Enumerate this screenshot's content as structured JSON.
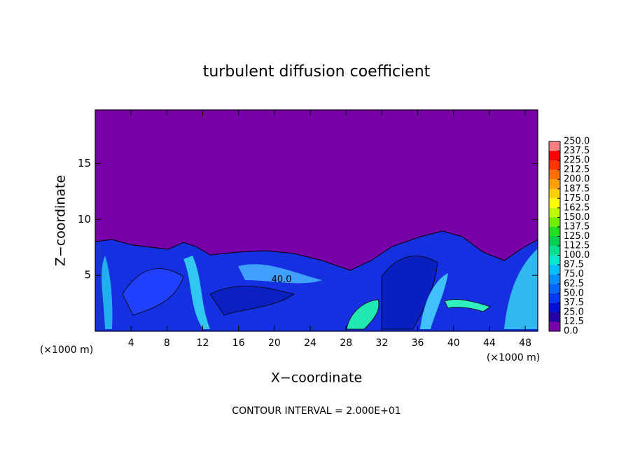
{
  "chart_data": {
    "type": "contour",
    "title": "turbulent diffusion coefficient",
    "xlabel": "X−coordinate",
    "ylabel": "Z−coordinate",
    "xunit": "(×1000 m)",
    "yunit": "(×1000 m)",
    "footnote": "CONTOUR INTERVAL = 2.000E+01",
    "xlim": [
      0,
      49.4
    ],
    "xticks": [
      4,
      8,
      12,
      16,
      20,
      24,
      28,
      32,
      36,
      40,
      44,
      48
    ],
    "ylim": [
      0,
      19.8
    ],
    "yticks": [
      5,
      10,
      15
    ],
    "annotations": [
      {
        "text": "40.0",
        "x": 20.8,
        "z": 4.6
      }
    ],
    "levels": [
      {
        "value": 0,
        "label": "0.0"
      },
      12.5,
      25,
      37.5,
      50,
      62.5,
      75,
      87.5,
      100,
      112.5,
      125,
      137.5,
      150,
      162.5,
      175,
      187.5,
      200,
      212.5,
      225,
      237.5,
      250
    ],
    "level_labels": [
      "0.0",
      "12.5",
      "25.0",
      "37.5",
      "50.0",
      "62.5",
      "75.0",
      "87.5",
      "100.0",
      "112.5",
      "125.0",
      "137.5",
      "150.0",
      "162.5",
      "175.0",
      "187.5",
      "200.0",
      "212.5",
      "225.0",
      "237.5",
      "250.0"
    ],
    "colors": [
      "#7800a8",
      "#2400a8",
      "#0010d8",
      "#0038ff",
      "#0064ff",
      "#0090ff",
      "#00c0ff",
      "#00e8d0",
      "#00e090",
      "#00d050",
      "#20e020",
      "#70f000",
      "#c0ff00",
      "#ffff00",
      "#ffd000",
      "#ffa000",
      "#ff7000",
      "#ff3800",
      "#ff0000",
      "#ff8080"
    ]
  }
}
